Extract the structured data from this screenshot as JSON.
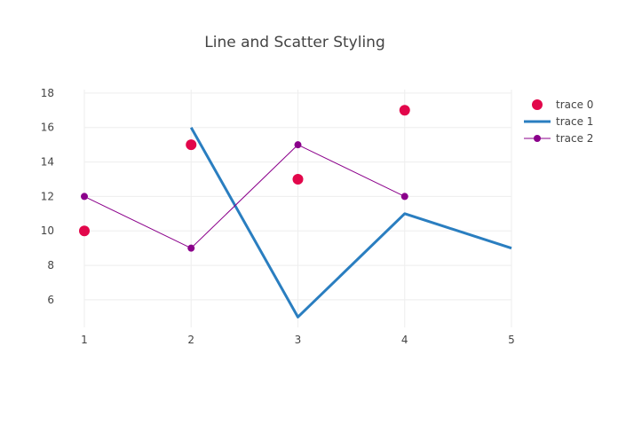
{
  "chart_data": {
    "type": "line",
    "title": "Line and Scatter Styling",
    "xlabel": "",
    "ylabel": "",
    "x_ticks": [
      "1",
      "2",
      "3",
      "4",
      "5"
    ],
    "y_ticks": [
      "6",
      "8",
      "10",
      "12",
      "14",
      "16",
      "18"
    ],
    "xlim": [
      1,
      5
    ],
    "ylim": [
      4.4,
      18.2
    ],
    "legend_position": "right",
    "grid": true,
    "series": [
      {
        "name": "trace 0",
        "mode": "markers",
        "color": "#e2074b",
        "x": [
          1,
          2,
          3,
          4
        ],
        "y": [
          10,
          15,
          13,
          17
        ]
      },
      {
        "name": "trace 1",
        "mode": "lines",
        "color": "#2a7ec0",
        "x": [
          2,
          3,
          4,
          5
        ],
        "y": [
          16,
          5,
          11,
          9
        ]
      },
      {
        "name": "trace 2",
        "mode": "lines+markers",
        "color": "#8b008b",
        "x": [
          1,
          2,
          3,
          4
        ],
        "y": [
          12,
          9,
          15,
          12
        ]
      }
    ]
  }
}
